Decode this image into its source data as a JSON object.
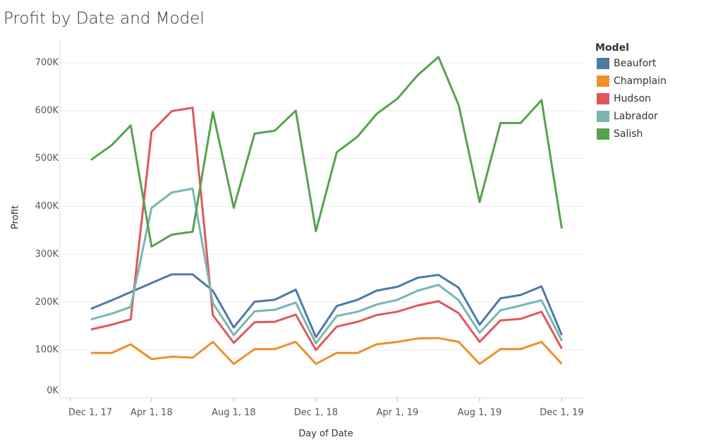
{
  "chart_data": {
    "type": "line",
    "title": "Profit by Date and Model",
    "x_label": "Day of Date",
    "y_label": "Profit",
    "legend_title": "Model",
    "legend": "right",
    "grid": true,
    "x": [
      "2018-01-01",
      "2018-02-01",
      "2018-03-01",
      "2018-04-01",
      "2018-05-01",
      "2018-06-01",
      "2018-07-01",
      "2018-08-01",
      "2018-09-01",
      "2018-10-01",
      "2018-11-01",
      "2018-12-01",
      "2019-01-01",
      "2019-02-01",
      "2019-03-01",
      "2019-04-01",
      "2019-05-01",
      "2019-06-01",
      "2019-07-01",
      "2019-08-01",
      "2019-09-01",
      "2019-10-01",
      "2019-11-01",
      "2019-12-01"
    ],
    "xlim": [
      "2017-11-16",
      "2020-01-03"
    ],
    "xticks": [
      {
        "value": "2017-12-01",
        "label": "Dec 1, 17"
      },
      {
        "value": "2018-04-01",
        "label": "Apr 1, 18"
      },
      {
        "value": "2018-08-01",
        "label": "Aug 1, 18"
      },
      {
        "value": "2018-12-01",
        "label": "Dec 1, 18"
      },
      {
        "value": "2019-04-01",
        "label": "Apr 1, 19"
      },
      {
        "value": "2019-08-01",
        "label": "Aug 1, 19"
      },
      {
        "value": "2019-12-01",
        "label": "Dec 1, 19"
      }
    ],
    "ylim": [
      0,
      750000
    ],
    "yticks": [
      {
        "value": 0,
        "label": "0K"
      },
      {
        "value": 100000,
        "label": "100K"
      },
      {
        "value": 200000,
        "label": "200K"
      },
      {
        "value": 300000,
        "label": "300K"
      },
      {
        "value": 400000,
        "label": "400K"
      },
      {
        "value": 500000,
        "label": "500K"
      },
      {
        "value": 600000,
        "label": "600K"
      },
      {
        "value": 700000,
        "label": "700K"
      }
    ],
    "series": [
      {
        "name": "Beaufort",
        "color": "#4e79a7",
        "values": [
          186000,
          204000,
          221000,
          240000,
          258000,
          258000,
          224000,
          147000,
          201000,
          205000,
          226000,
          127000,
          192000,
          205000,
          224000,
          232000,
          251000,
          257000,
          230000,
          153000,
          208000,
          215000,
          233000,
          131000
        ]
      },
      {
        "name": "Champlain",
        "color": "#f28e2b",
        "values": [
          94000,
          94000,
          112000,
          81000,
          86000,
          84000,
          117000,
          71000,
          102000,
          102000,
          117000,
          71000,
          94000,
          94000,
          112000,
          117000,
          124000,
          125000,
          117000,
          71000,
          102000,
          102000,
          117000,
          71000
        ]
      },
      {
        "name": "Hudson",
        "color": "#e15759",
        "values": [
          143000,
          153000,
          164000,
          556000,
          599000,
          606000,
          173000,
          115000,
          158000,
          159000,
          174000,
          100000,
          149000,
          159000,
          173000,
          180000,
          193000,
          202000,
          177000,
          117000,
          162000,
          165000,
          180000,
          103000
        ]
      },
      {
        "name": "Labrador",
        "color": "#76b7b2",
        "values": [
          164000,
          176000,
          190000,
          397000,
          429000,
          437000,
          198000,
          131000,
          181000,
          184000,
          199000,
          114000,
          171000,
          180000,
          195000,
          205000,
          224000,
          236000,
          204000,
          136000,
          183000,
          193000,
          204000,
          119000
        ]
      },
      {
        "name": "Salish",
        "color": "#59a14f",
        "values": [
          497000,
          528000,
          569000,
          316000,
          341000,
          347000,
          597000,
          397000,
          552000,
          558000,
          600000,
          348000,
          513000,
          546000,
          593000,
          625000,
          674000,
          712000,
          611000,
          409000,
          574000,
          574000,
          622000,
          354000
        ]
      }
    ]
  }
}
